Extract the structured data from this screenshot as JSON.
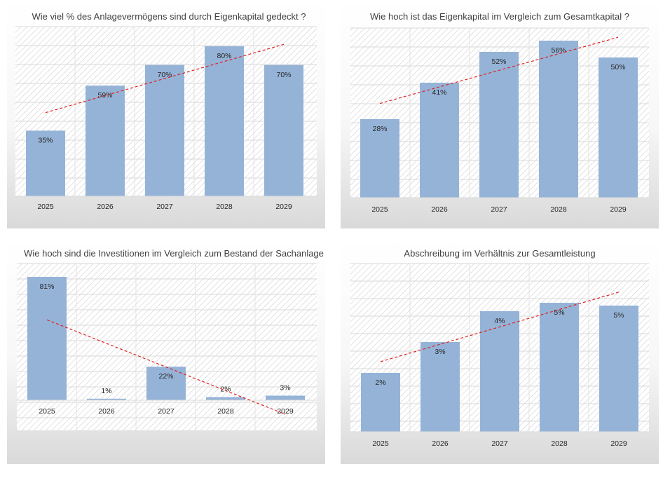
{
  "chart_data": [
    {
      "type": "bar",
      "title": "Wie viel % des Anlagevermögens sind durch Eigenkapital gedeckt ?",
      "categories": [
        "2025",
        "2026",
        "2027",
        "2028",
        "2029"
      ],
      "values": [
        35,
        59,
        70,
        80,
        70
      ],
      "labels": [
        "35%",
        "59%",
        "70%",
        "80%",
        "70%"
      ],
      "ylim": [
        0,
        80
      ],
      "trendline": "linear",
      "bar_color": "#95b3d7",
      "trend_color": "#e02020",
      "grid": true,
      "legend": "none"
    },
    {
      "type": "bar",
      "title": "Wie hoch ist das Eigenkapital im Vergleich zum Gesamtkapital ?",
      "categories": [
        "2025",
        "2026",
        "2027",
        "2028",
        "2029"
      ],
      "values": [
        28,
        41,
        52,
        56,
        50
      ],
      "labels": [
        "28%",
        "41%",
        "52%",
        "56%",
        "50%"
      ],
      "ylim": [
        0,
        56
      ],
      "trendline": "linear",
      "bar_color": "#95b3d7",
      "trend_color": "#e02020",
      "grid": true,
      "legend": "none"
    },
    {
      "type": "bar",
      "title": "Wie hoch sind die Investitionen im Vergleich zum Bestand der Sachanlage",
      "categories": [
        "2025",
        "2026",
        "2027",
        "2028",
        "2029"
      ],
      "values": [
        81,
        1,
        22,
        2,
        3
      ],
      "labels": [
        "81%",
        "1%",
        "22%",
        "2%",
        "3%"
      ],
      "ylim": [
        0,
        81
      ],
      "trendline": "linear",
      "bar_color": "#95b3d7",
      "trend_color": "#e02020",
      "grid": true,
      "legend": "none"
    },
    {
      "type": "bar",
      "title": "Abschreibung im Verhältnis zur Gesamtleistung",
      "categories": [
        "2025",
        "2026",
        "2027",
        "2028",
        "2029"
      ],
      "values": [
        2.1,
        3.2,
        4.3,
        4.6,
        4.5
      ],
      "labels": [
        "2%",
        "3%",
        "4%",
        "5%",
        "5%"
      ],
      "ylim": [
        0,
        4.6
      ],
      "trendline": "linear",
      "bar_color": "#95b3d7",
      "trend_color": "#e02020",
      "grid": true,
      "legend": "none"
    }
  ]
}
